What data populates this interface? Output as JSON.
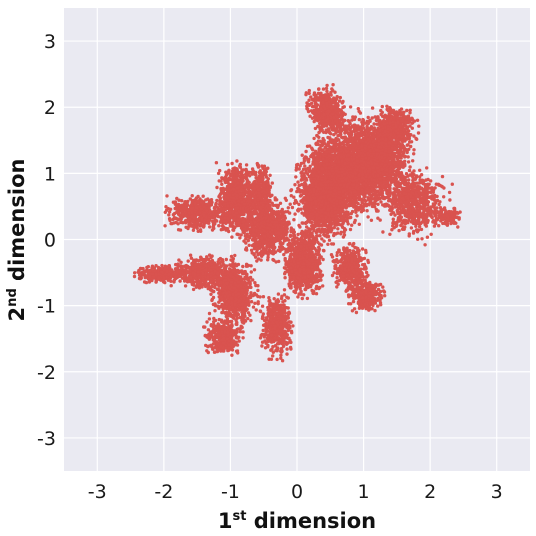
{
  "chart_data": {
    "type": "scatter",
    "xlim": [
      -3.5,
      3.5
    ],
    "ylim": [
      -3.5,
      3.5
    ],
    "grid": true,
    "legend": "none",
    "x_ticks": [
      "-3",
      "-2",
      "-1",
      "0",
      "1",
      "2",
      "3"
    ],
    "y_ticks": [
      "-3",
      "-2",
      "-1",
      "0",
      "1",
      "2",
      "3"
    ],
    "xlabel": {
      "prefix": "1",
      "sup": "st",
      "suffix": " dimension"
    },
    "ylabel": {
      "prefix": "2",
      "sup": "nd",
      "suffix": " dimension"
    },
    "colors": {
      "background": "#eaeaf2",
      "grid": "#ffffff",
      "points": "#d9534f"
    },
    "clusters": [
      {
        "cx": 0.75,
        "cy": 1.05,
        "rx": 0.5,
        "ry": 0.65,
        "rot": -30,
        "n": 2600
      },
      {
        "cx": 1.25,
        "cy": 1.2,
        "rx": 0.35,
        "ry": 0.55,
        "rot": -20,
        "n": 1200
      },
      {
        "cx": 0.4,
        "cy": 0.55,
        "rx": 0.3,
        "ry": 0.45,
        "rot": 0,
        "n": 1000
      },
      {
        "cx": 0.45,
        "cy": 1.95,
        "rx": 0.2,
        "ry": 0.28,
        "rot": 20,
        "n": 500
      },
      {
        "cx": 1.45,
        "cy": 1.7,
        "rx": 0.22,
        "ry": 0.28,
        "rot": -30,
        "n": 400
      },
      {
        "cx": 1.75,
        "cy": 0.55,
        "rx": 0.35,
        "ry": 0.4,
        "rot": -20,
        "n": 650
      },
      {
        "cx": 2.25,
        "cy": 0.35,
        "rx": 0.18,
        "ry": 0.12,
        "rot": 0,
        "n": 120
      },
      {
        "cx": 0.1,
        "cy": -0.35,
        "rx": 0.22,
        "ry": 0.38,
        "rot": 0,
        "n": 900
      },
      {
        "cx": -0.45,
        "cy": 0.15,
        "rx": 0.3,
        "ry": 0.35,
        "rot": 0,
        "n": 800
      },
      {
        "cx": -0.9,
        "cy": 0.6,
        "rx": 0.22,
        "ry": 0.42,
        "rot": 0,
        "n": 750
      },
      {
        "cx": -0.55,
        "cy": 0.7,
        "rx": 0.14,
        "ry": 0.35,
        "rot": 0,
        "n": 300
      },
      {
        "cx": -1.45,
        "cy": 0.4,
        "rx": 0.38,
        "ry": 0.2,
        "rot": 0,
        "n": 550
      },
      {
        "cx": -2.05,
        "cy": -0.52,
        "rx": 0.28,
        "ry": 0.1,
        "rot": 0,
        "n": 300
      },
      {
        "cx": -1.4,
        "cy": -0.5,
        "rx": 0.35,
        "ry": 0.2,
        "rot": 0,
        "n": 500
      },
      {
        "cx": -0.95,
        "cy": -0.8,
        "rx": 0.26,
        "ry": 0.35,
        "rot": 0,
        "n": 700
      },
      {
        "cx": -1.1,
        "cy": -1.45,
        "rx": 0.22,
        "ry": 0.22,
        "rot": 0,
        "n": 350
      },
      {
        "cx": -0.3,
        "cy": -1.3,
        "rx": 0.18,
        "ry": 0.38,
        "rot": 0,
        "n": 500
      },
      {
        "cx": 0.8,
        "cy": -0.45,
        "rx": 0.2,
        "ry": 0.28,
        "rot": 0,
        "n": 450
      },
      {
        "cx": 1.05,
        "cy": -0.85,
        "rx": 0.2,
        "ry": 0.18,
        "rot": 0,
        "n": 350
      }
    ]
  }
}
